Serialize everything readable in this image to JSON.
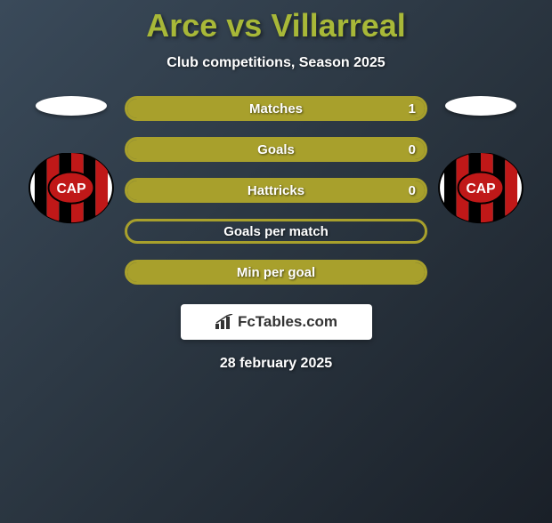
{
  "title": "Arce vs Villarreal",
  "subtitle": "Club competitions, Season 2025",
  "date": "28 february 2025",
  "logo_text": "FcTables.com",
  "accent_color": "#a8a02c",
  "border_color": "#a8a02c",
  "text_color": "#ffffff",
  "rows": [
    {
      "label": "Matches",
      "left": "",
      "right": "1",
      "fill_pct": 100,
      "fill_color": "#a8a02c"
    },
    {
      "label": "Goals",
      "left": "",
      "right": "0",
      "fill_pct": 100,
      "fill_color": "#a8a02c"
    },
    {
      "label": "Hattricks",
      "left": "",
      "right": "0",
      "fill_pct": 100,
      "fill_color": "#a8a02c"
    },
    {
      "label": "Goals per match",
      "left": "",
      "right": "",
      "fill_pct": 0,
      "fill_color": "#a8a02c"
    },
    {
      "label": "Min per goal",
      "left": "",
      "right": "",
      "fill_pct": 100,
      "fill_color": "#a8a02c"
    }
  ],
  "badge": {
    "bg": "#ffffff",
    "stripe_dark": "#000000",
    "stripe_red": "#c01818",
    "text": "CAP",
    "text_color": "#ffffff"
  }
}
